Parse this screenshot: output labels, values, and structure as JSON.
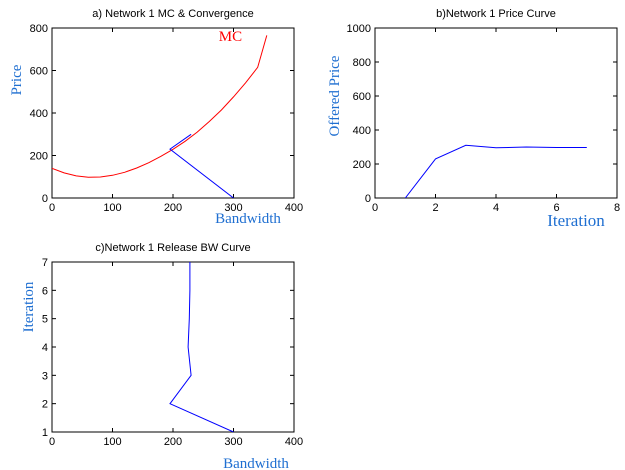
{
  "colors": {
    "axis": "#000000",
    "label": "#1f6fd1",
    "mc_curve": "#ff0000",
    "line": "#0000ff"
  },
  "chart_data": [
    {
      "type": "line",
      "title": "a) Network 1 MC & Convergence",
      "xlabel": "Bandwidth",
      "ylabel": "Price",
      "xlim": [
        0,
        400
      ],
      "ylim": [
        0,
        800
      ],
      "xticks": [
        0,
        100,
        200,
        300,
        400
      ],
      "yticks": [
        0,
        200,
        400,
        600,
        800
      ],
      "annotations": [
        {
          "text": "MC",
          "x": 295,
          "y": 740
        }
      ],
      "series": [
        {
          "name": "",
          "color": "#ff0000",
          "x": [
            0,
            20,
            40,
            60,
            80,
            100,
            120,
            140,
            160,
            180,
            200,
            220,
            240,
            260,
            280,
            300,
            320,
            340,
            355
          ],
          "y": [
            140,
            118,
            104,
            98,
            99,
            107,
            121,
            141,
            166,
            196,
            229,
            267,
            310,
            360,
            414,
            476,
            542,
            615,
            765
          ]
        },
        {
          "name": "",
          "color": "#0000ff",
          "x": [
            300,
            195,
            230
          ],
          "y": [
            0,
            230,
            300
          ]
        }
      ]
    },
    {
      "type": "line",
      "title": "b)Network 1 Price Curve",
      "xlabel": "Iteration",
      "ylabel": "Offered Price",
      "xlim": [
        0,
        8
      ],
      "ylim": [
        0,
        1000
      ],
      "xticks": [
        0,
        2,
        4,
        6,
        8
      ],
      "yticks": [
        0,
        200,
        400,
        600,
        800,
        1000
      ],
      "series": [
        {
          "name": "",
          "color": "#0000ff",
          "x": [
            1,
            2,
            3,
            4,
            5,
            6,
            7
          ],
          "y": [
            0,
            230,
            310,
            295,
            300,
            297,
            297
          ]
        }
      ]
    },
    {
      "type": "line",
      "title": "c)Network 1 Release BW Curve",
      "xlabel": "Bandwidth",
      "ylabel": "Iteration",
      "xlim": [
        0,
        400
      ],
      "ylim": [
        1,
        7
      ],
      "xticks": [
        0,
        100,
        200,
        300,
        400
      ],
      "yticks": [
        1,
        2,
        3,
        4,
        5,
        6,
        7
      ],
      "series": [
        {
          "name": "",
          "color": "#0000ff",
          "x": [
            300,
            195,
            230,
            225,
            227,
            228,
            228
          ],
          "y": [
            1,
            2,
            3,
            4,
            5,
            6,
            7
          ]
        }
      ]
    }
  ]
}
